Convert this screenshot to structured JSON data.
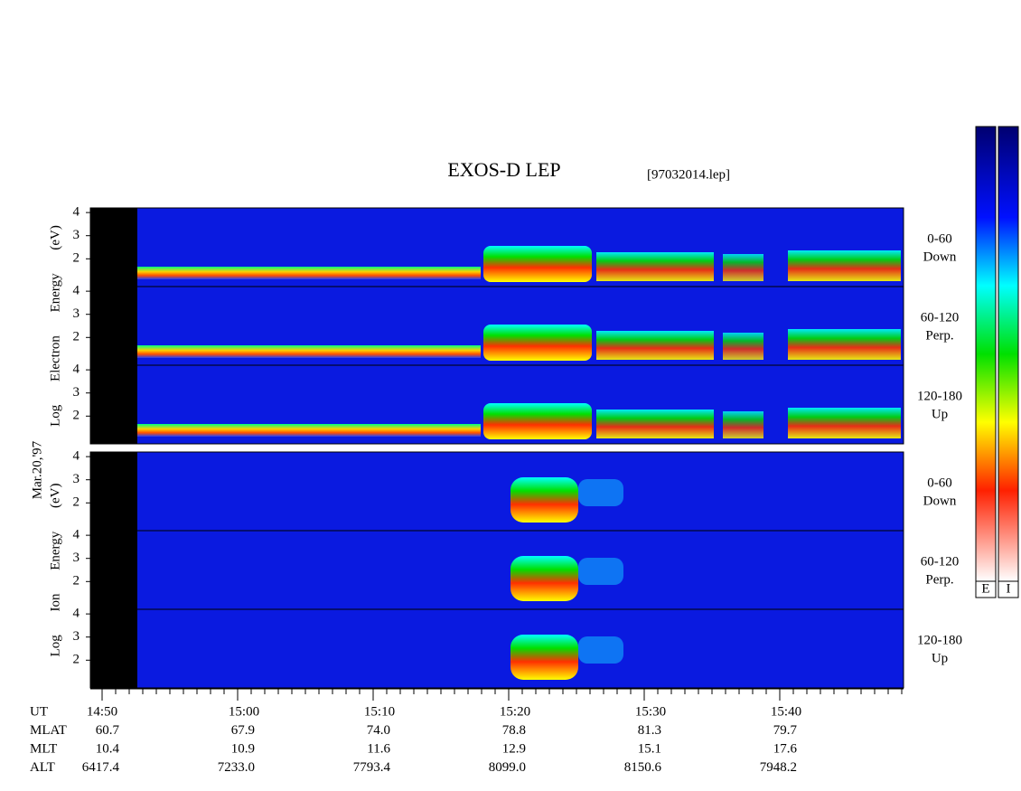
{
  "title": "EXOS-D LEP",
  "file": "[97032014.lep]",
  "date": "Mar.20,'97",
  "electron": {
    "ylabel": "Log Electron Energy (eV)",
    "panels": [
      {
        "label": "0-60",
        "sub": "Down"
      },
      {
        "label": "60-120",
        "sub": "Perp."
      },
      {
        "label": "120-180",
        "sub": "Up"
      }
    ],
    "yticks": [
      4,
      3,
      2
    ]
  },
  "ion": {
    "ylabel": "Log Ion Energy (eV)",
    "panels": [
      {
        "label": "0-60",
        "sub": "Down"
      },
      {
        "label": "60-120",
        "sub": "Perp."
      },
      {
        "label": "120-180",
        "sub": "Up"
      }
    ],
    "yticks": [
      4,
      3,
      2
    ]
  },
  "footer": {
    "rows": [
      {
        "label": "UT",
        "values": [
          "14:50",
          "15:00",
          "15:10",
          "15:20",
          "15:30",
          "15:40"
        ]
      },
      {
        "label": "MLAT",
        "values": [
          "60.7",
          "67.9",
          "74.0",
          "78.8",
          "81.3",
          "79.7"
        ]
      },
      {
        "label": "MLT",
        "values": [
          "10.4",
          "10.9",
          "11.6",
          "12.9",
          "15.1",
          "17.6"
        ]
      },
      {
        "label": "ALT",
        "values": [
          "6417.4",
          "7233.0",
          "7793.4",
          "8099.0",
          "8150.6",
          "7948.2"
        ]
      }
    ]
  },
  "colorbar": {
    "labels": [
      "E",
      "I"
    ]
  }
}
